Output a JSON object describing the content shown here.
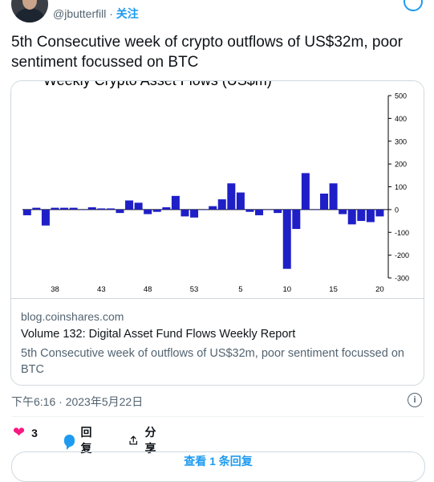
{
  "tweet": {
    "handle": "@jbutterfill",
    "separator": "·",
    "follow_label": "关注",
    "text": "5th Consecutive week of crypto outflows of US$32m, poor sentiment focussed on BTC",
    "timestamp": "下午6:16 · 2023年5月22日"
  },
  "card": {
    "domain": "blog.coinshares.com",
    "title": "Volume 132: Digital Asset Fund Flows Weekly Report",
    "description": "5th Consecutive week of outflows of US$32m, poor sentiment focussed on BTC"
  },
  "actions": {
    "like_count": "3",
    "reply_label": "回复",
    "share_label": "分享"
  },
  "more_replies_label": "查看 1 条回复",
  "chart_data": {
    "type": "bar",
    "title": "Weekly Crypto Asset Flows (US$m)",
    "x_tick_labels": [
      "38",
      "43",
      "48",
      "53",
      "5",
      "10",
      "15",
      "20"
    ],
    "y_ticks": [
      500,
      400,
      300,
      200,
      100,
      0,
      -100,
      -200,
      -300
    ],
    "ylim": [
      -300,
      500
    ],
    "bar_color": "#1f1fc8",
    "values": [
      -25,
      8,
      -70,
      8,
      8,
      8,
      0,
      10,
      5,
      5,
      -15,
      40,
      30,
      -20,
      -10,
      10,
      60,
      -30,
      -35,
      0,
      15,
      45,
      115,
      75,
      -10,
      -25,
      0,
      -15,
      -260,
      -85,
      160,
      0,
      70,
      115,
      -20,
      -65,
      -50,
      -55,
      -30
    ]
  }
}
